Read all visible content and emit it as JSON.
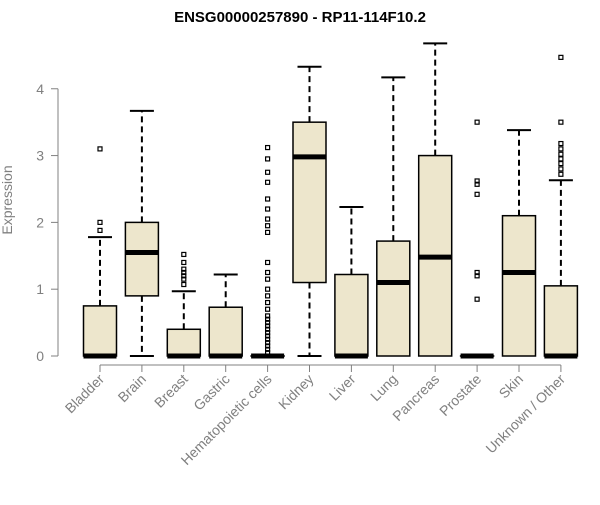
{
  "chart_data": {
    "type": "boxplot",
    "title": "ENSG00000257890 - RP11-114F10.2",
    "xlabel": "",
    "ylabel": "Expression",
    "ylim": [
      0,
      4.7
    ],
    "yticks": [
      0,
      1,
      2,
      3,
      4
    ],
    "grid": false,
    "legend": "none",
    "colors": {
      "box_fill": "#ede6cc",
      "box_stroke": "#000000",
      "axis": "#808080",
      "title": "#000000"
    },
    "categories": [
      "Bladder",
      "Brain",
      "Breast",
      "Gastric",
      "Hematopoietic cells",
      "Kidney",
      "Liver",
      "Lung",
      "Pancreas",
      "Prostate",
      "Skin",
      "Unknown / Other"
    ],
    "boxes": [
      {
        "category": "Bladder",
        "whisker_low": 0,
        "q1": 0,
        "median": 0,
        "q3": 0.75,
        "whisker_high": 1.78,
        "outliers": [
          1.88,
          2.0,
          3.1
        ]
      },
      {
        "category": "Brain",
        "whisker_low": 0,
        "q1": 0.9,
        "median": 1.55,
        "q3": 2.0,
        "whisker_high": 3.67,
        "outliers": []
      },
      {
        "category": "Breast",
        "whisker_low": 0,
        "q1": 0,
        "median": 0,
        "q3": 0.4,
        "whisker_high": 0.97,
        "outliers": [
          1.07,
          1.15,
          1.2,
          1.25,
          1.3,
          1.4,
          1.52
        ]
      },
      {
        "category": "Gastric",
        "whisker_low": 0,
        "q1": 0,
        "median": 0,
        "q3": 0.73,
        "whisker_high": 1.22,
        "outliers": []
      },
      {
        "category": "Hematopoietic cells",
        "whisker_low": 0,
        "q1": 0,
        "median": 0,
        "q3": 0,
        "whisker_high": 0,
        "outliers": [
          0.05,
          0.1,
          0.15,
          0.2,
          0.25,
          0.3,
          0.35,
          0.4,
          0.45,
          0.5,
          0.55,
          0.6,
          0.7,
          0.8,
          0.9,
          1.0,
          1.15,
          1.25,
          1.4,
          1.85,
          1.95,
          2.05,
          2.2,
          2.35,
          2.6,
          2.75,
          2.95,
          3.12
        ]
      },
      {
        "category": "Kidney",
        "whisker_low": 0,
        "q1": 1.1,
        "median": 2.98,
        "q3": 3.5,
        "whisker_high": 4.33,
        "outliers": []
      },
      {
        "category": "Liver",
        "whisker_low": 0,
        "q1": 0,
        "median": 0,
        "q3": 1.22,
        "whisker_high": 2.23,
        "outliers": []
      },
      {
        "category": "Lung",
        "whisker_low": 0,
        "q1": 0,
        "median": 1.1,
        "q3": 1.72,
        "whisker_high": 4.17,
        "outliers": []
      },
      {
        "category": "Pancreas",
        "whisker_low": 0,
        "q1": 0,
        "median": 1.48,
        "q3": 3.0,
        "whisker_high": 4.68,
        "outliers": []
      },
      {
        "category": "Prostate",
        "whisker_low": 0,
        "q1": 0,
        "median": 0,
        "q3": 0,
        "whisker_high": 0,
        "outliers": [
          0.85,
          1.2,
          1.25,
          2.42,
          2.57,
          2.62,
          3.5
        ]
      },
      {
        "category": "Skin",
        "whisker_low": 0,
        "q1": 0,
        "median": 1.25,
        "q3": 2.1,
        "whisker_high": 3.38,
        "outliers": []
      },
      {
        "category": "Unknown / Other",
        "whisker_low": 0,
        "q1": 0,
        "median": 0,
        "q3": 1.05,
        "whisker_high": 2.63,
        "outliers": [
          2.72,
          2.8,
          2.88,
          2.95,
          3.02,
          3.1,
          3.18,
          3.5,
          4.47
        ]
      }
    ]
  }
}
